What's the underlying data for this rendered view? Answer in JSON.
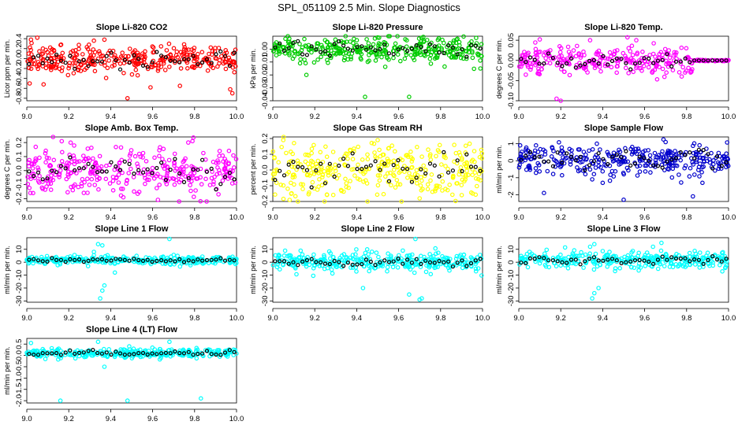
{
  "figure": {
    "title": "SPL_051109  2.5 Min. Slope Diagnostics"
  },
  "chart_data": [
    {
      "type": "scatter",
      "title": "Slope Li-820 CO2",
      "ylabel": "Licor ppm per min.",
      "color": "#ff0000",
      "xlim": [
        9.0,
        10.0
      ],
      "xticks": [
        9.0,
        9.2,
        9.4,
        9.6,
        9.8,
        10.0
      ],
      "xtick_labels": [
        "9.0",
        "9.2",
        "9.4",
        "9.6",
        "9.8",
        "10.0"
      ],
      "ylim": [
        -0.85,
        0.45
      ],
      "yticks": [
        -0.8,
        -0.6,
        -0.4,
        -0.2,
        0.0,
        0.2,
        0.4
      ],
      "ytick_labels": [
        "-0.8",
        "-0.6",
        "-0.4",
        "-0.2",
        "0.0",
        "0.2",
        "0.4"
      ],
      "spread": 0.14,
      "mean": -0.02,
      "outliers": [
        [
          9.02,
          0.38
        ],
        [
          9.05,
          0.42
        ],
        [
          9.48,
          -0.8
        ],
        [
          9.32,
          0.36
        ],
        [
          9.97,
          -0.62
        ],
        [
          9.98,
          -0.7
        ],
        [
          9.59,
          -0.58
        ],
        [
          9.73,
          -0.55
        ],
        [
          9.37,
          0.38
        ],
        [
          9.08,
          -0.52
        ]
      ]
    },
    {
      "type": "scatter",
      "title": "Slope Li-820 Pressure",
      "ylabel": "kPa per min.",
      "color": "#00cc00",
      "xlim": [
        9.0,
        10.0
      ],
      "xticks": [
        9.0,
        9.2,
        9.4,
        9.6,
        9.8,
        10.0
      ],
      "xtick_labels": [
        "9.0",
        "9.2",
        "9.4",
        "9.6",
        "9.8",
        "10.0"
      ],
      "ylim": [
        -0.04,
        0.01
      ],
      "yticks": [
        -0.04,
        -0.03,
        -0.02,
        -0.01,
        0.0
      ],
      "ytick_labels": [
        "-0.04",
        "-0.03",
        "-0.02",
        "-0.01",
        "0.00"
      ],
      "spread": 0.005,
      "mean": 0.0,
      "outliers": [
        [
          9.44,
          -0.037
        ],
        [
          9.16,
          -0.02
        ],
        [
          9.65,
          -0.037
        ],
        [
          9.99,
          -0.015
        ],
        [
          9.06,
          0.008
        ],
        [
          9.5,
          0.009
        ],
        [
          9.88,
          0.008
        ],
        [
          9.13,
          -0.011
        ]
      ]
    },
    {
      "type": "scatter",
      "title": "Slope Li-820 Temp.",
      "ylabel": "degrees C per min.",
      "color": "#ff00ff",
      "xlim": [
        9.0,
        10.0
      ],
      "xticks": [
        9.0,
        9.2,
        9.4,
        9.6,
        9.8,
        10.0
      ],
      "xtick_labels": [
        "9.0",
        "9.2",
        "9.4",
        "9.6",
        "9.8",
        "10.0"
      ],
      "ylim": [
        -0.1,
        0.06
      ],
      "yticks": [
        -0.1,
        -0.05,
        0.0,
        0.05
      ],
      "ytick_labels": [
        "-0.10",
        "-0.05",
        "0.00",
        "0.05"
      ],
      "spread": 0.018,
      "mean": 0.0,
      "flat_after": 9.83,
      "flat_value": 0.0,
      "outliers": [
        [
          9.18,
          -0.095
        ],
        [
          9.2,
          -0.1
        ],
        [
          9.1,
          0.052
        ],
        [
          9.34,
          0.05
        ],
        [
          9.56,
          0.05
        ]
      ]
    },
    {
      "type": "scatter",
      "title": "Slope Amb. Box Temp.",
      "ylabel": "degrees C per min.",
      "color": "#ff00ff",
      "xlim": [
        9.0,
        10.0
      ],
      "xticks": [
        9.0,
        9.2,
        9.4,
        9.6,
        9.8,
        10.0
      ],
      "xtick_labels": [
        "9.0",
        "9.2",
        "9.4",
        "9.6",
        "9.8",
        "10.0"
      ],
      "ylim": [
        -0.22,
        0.24
      ],
      "yticks": [
        -0.2,
        -0.1,
        0.0,
        0.1,
        0.2
      ],
      "ytick_labels": [
        "-0.2",
        "-0.1",
        "0.0",
        "0.1",
        "0.2"
      ],
      "spread": 0.08,
      "mean": 0.0,
      "outliers": [
        [
          9.46,
          -0.19
        ],
        [
          9.77,
          0.2
        ],
        [
          9.79,
          0.21
        ],
        [
          9.03,
          -0.16
        ]
      ]
    },
    {
      "type": "scatter",
      "title": "Slope Gas Stream RH",
      "ylabel": "percent per min.",
      "color": "#ffff00",
      "xlim": [
        9.0,
        10.0
      ],
      "xticks": [
        9.0,
        9.2,
        9.4,
        9.6,
        9.8,
        10.0
      ],
      "xtick_labels": [
        "9.0",
        "9.2",
        "9.4",
        "9.6",
        "9.8",
        "10.0"
      ],
      "ylim": [
        -0.2,
        0.21
      ],
      "yticks": [
        -0.2,
        -0.1,
        0.0,
        0.1,
        0.2
      ],
      "ytick_labels": [
        "-0.2",
        "-0.1",
        "0.0",
        "0.1",
        "0.2"
      ],
      "spread": 0.085,
      "mean": 0.0,
      "outliers": [
        [
          9.05,
          0.19
        ],
        [
          9.08,
          -0.19
        ],
        [
          9.5,
          0.19
        ],
        [
          9.7,
          -0.18
        ]
      ]
    },
    {
      "type": "scatter",
      "title": "Slope Sample Flow",
      "ylabel": "ml/min per min.",
      "color": "#0000cc",
      "xlim": [
        9.0,
        10.0
      ],
      "xticks": [
        9.0,
        9.2,
        9.4,
        9.6,
        9.8,
        10.0
      ],
      "xtick_labels": [
        "9.0",
        "9.2",
        "9.4",
        "9.6",
        "9.8",
        "10.0"
      ],
      "ylim": [
        -2.4,
        1.4
      ],
      "yticks": [
        -2,
        -1,
        0,
        1
      ],
      "ytick_labels": [
        "-2",
        "-1",
        "0",
        "1"
      ],
      "spread": 0.45,
      "mean": 0.05,
      "outliers": [
        [
          9.12,
          -1.9
        ],
        [
          9.5,
          -2.3
        ],
        [
          9.83,
          -2.1
        ],
        [
          9.69,
          1.25
        ],
        [
          9.35,
          -1.1
        ],
        [
          9.4,
          -1.3
        ],
        [
          9.7,
          1.1
        ]
      ]
    },
    {
      "type": "scatter",
      "title": "Slope Line 1 Flow",
      "ylabel": "ml/min per min.",
      "color": "#00ffff",
      "xlim": [
        9.0,
        10.0
      ],
      "xticks": [
        9.0,
        9.2,
        9.4,
        9.6,
        9.8,
        10.0
      ],
      "xtick_labels": [
        "9.0",
        "9.2",
        "9.4",
        "9.6",
        "9.8",
        "10.0"
      ],
      "ylim": [
        -31,
        19
      ],
      "yticks": [
        -30,
        -20,
        -10,
        0,
        10
      ],
      "ytick_labels": [
        "-30",
        "-20",
        "-10",
        "0",
        "10"
      ],
      "spread": 1.5,
      "mean": 1.5,
      "outliers": [
        [
          9.35,
          -28
        ],
        [
          9.36,
          -22
        ],
        [
          9.37,
          -18
        ],
        [
          9.34,
          14
        ],
        [
          9.36,
          13
        ],
        [
          9.68,
          18
        ],
        [
          9.42,
          -8
        ],
        [
          9.32,
          8
        ]
      ]
    },
    {
      "type": "scatter",
      "title": "Slope Line 2 Flow",
      "ylabel": "ml/min per min.",
      "color": "#00ffff",
      "xlim": [
        9.0,
        10.0
      ],
      "xticks": [
        9.0,
        9.2,
        9.4,
        9.6,
        9.8,
        10.0
      ],
      "xtick_labels": [
        "9.0",
        "9.2",
        "9.4",
        "9.6",
        "9.8",
        "10.0"
      ],
      "ylim": [
        -31,
        19
      ],
      "yticks": [
        -30,
        -20,
        -10,
        0,
        10
      ],
      "ytick_labels": [
        "-30",
        "-20",
        "-10",
        "0",
        "10"
      ],
      "spread": 3.5,
      "mean": 0.5,
      "outliers": [
        [
          9.68,
          18
        ],
        [
          9.7,
          -29
        ],
        [
          9.65,
          -25
        ],
        [
          9.43,
          -20
        ],
        [
          9.71,
          -28
        ],
        [
          9.45,
          10
        ],
        [
          9.62,
          9
        ]
      ]
    },
    {
      "type": "scatter",
      "title": "Slope Line 3 Flow",
      "ylabel": "ml/min per min.",
      "color": "#00ffff",
      "xlim": [
        9.0,
        10.0
      ],
      "xticks": [
        9.0,
        9.2,
        9.4,
        9.6,
        9.8,
        10.0
      ],
      "xtick_labels": [
        "9.0",
        "9.2",
        "9.4",
        "9.6",
        "9.8",
        "10.0"
      ],
      "ylim": [
        -31,
        19
      ],
      "yticks": [
        -30,
        -20,
        -10,
        0,
        10
      ],
      "ytick_labels": [
        "-30",
        "-20",
        "-10",
        "0",
        "10"
      ],
      "spread": 3.0,
      "mean": 2.0,
      "outliers": [
        [
          9.35,
          -28
        ],
        [
          9.36,
          -24
        ],
        [
          9.38,
          -20
        ],
        [
          9.34,
          12
        ],
        [
          9.36,
          14
        ],
        [
          9.68,
          15
        ],
        [
          9.64,
          12
        ]
      ]
    },
    {
      "type": "scatter",
      "title": "Slope Line 4 (LT) Flow",
      "ylabel": "ml/min per min.",
      "color": "#00ffff",
      "xlim": [
        9.0,
        10.0
      ],
      "xticks": [
        9.0,
        9.2,
        9.4,
        9.6,
        9.8,
        10.0
      ],
      "xtick_labels": [
        "9.0",
        "9.2",
        "9.4",
        "9.6",
        "9.8",
        "10.0"
      ],
      "ylim": [
        -2.1,
        0.75
      ],
      "yticks": [
        -2.0,
        -1.5,
        -1.0,
        -0.5,
        0.0,
        0.5
      ],
      "ytick_labels": [
        "-2.0",
        "-1.5",
        "-1.0",
        "-0.5",
        "0.0",
        "0.5"
      ],
      "spread": 0.1,
      "mean": 0.1,
      "outliers": [
        [
          9.16,
          -2.0
        ],
        [
          9.48,
          -2.0
        ],
        [
          9.83,
          -1.9
        ],
        [
          9.37,
          -0.5
        ],
        [
          9.34,
          0.6
        ],
        [
          9.68,
          0.6
        ],
        [
          9.02,
          0.55
        ]
      ]
    }
  ]
}
